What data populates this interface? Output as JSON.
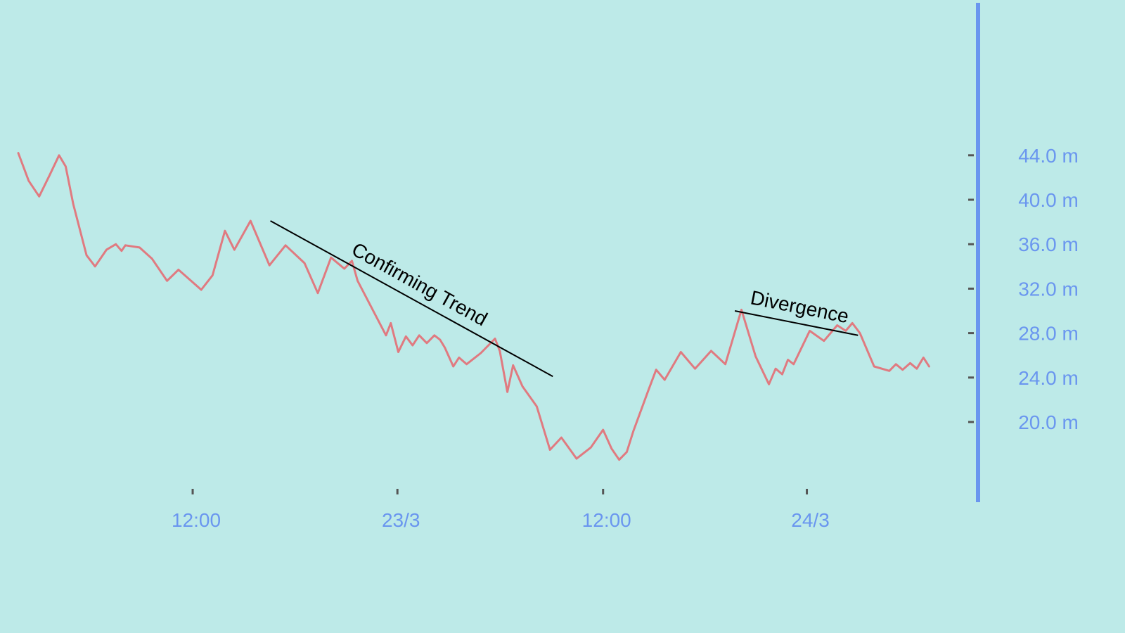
{
  "chart_data": {
    "type": "line",
    "title": "",
    "xlabel": "",
    "ylabel": "",
    "grid": false,
    "colors": {
      "background": "#bdeae8",
      "line": "#e07a80",
      "axis": "#6a96ef",
      "tick_mark": "#555555",
      "annotation": "#000000"
    },
    "x_range": [
      0,
      100
    ],
    "ylim": [
      16,
      60
    ],
    "y_ticks": [
      {
        "value": 44,
        "label": "44.0 m"
      },
      {
        "value": 40,
        "label": "40.0 m"
      },
      {
        "value": 36,
        "label": "36.0 m"
      },
      {
        "value": 32,
        "label": "32.0 m"
      },
      {
        "value": 28,
        "label": "28.0 m"
      },
      {
        "value": 24,
        "label": "24.0 m"
      },
      {
        "value": 20,
        "label": "20.0 m"
      }
    ],
    "x_ticks": [
      {
        "value": 18.4,
        "label": "12:00"
      },
      {
        "value": 40.0,
        "label": "23/3"
      },
      {
        "value": 61.7,
        "label": "12:00"
      },
      {
        "value": 83.2,
        "label": "24/3"
      }
    ],
    "series": [
      {
        "x": [
          0,
          1.1,
          2.2,
          3.3,
          4.3,
          5.0,
          5.8,
          7.2,
          8.1,
          9.3,
          10.3,
          10.9,
          11.3,
          12.8,
          14.1,
          15.7,
          16.9,
          19.3,
          20.5,
          21.8,
          22.8,
          24.5,
          26.5,
          28.2,
          30.2,
          31.6,
          33.0,
          34.4,
          35.2,
          35.8,
          38.8,
          39.3,
          40.1,
          40.9,
          41.6,
          42.3,
          43.1,
          43.9,
          44.5,
          45.0,
          45.9,
          46.5,
          47.3,
          48.8,
          50.3,
          50.8,
          51.6,
          52.2,
          53.2,
          54.7,
          56.1,
          57.3,
          58.9,
          60.4,
          61.7,
          62.6,
          63.4,
          64.2,
          64.9,
          66.5,
          67.3,
          68.2,
          69.9,
          71.4,
          73.1,
          74.6,
          76.3,
          77.8,
          79.2,
          79.9,
          80.6,
          81.2,
          81.8,
          83.5,
          85.0,
          86.4,
          87.3,
          88.0,
          88.8,
          90.3,
          91.9,
          92.6,
          93.3,
          94.1,
          94.8,
          95.5,
          96.1
        ],
        "y": [
          44.2,
          41.7,
          40.3,
          42.2,
          44.0,
          43.0,
          39.6,
          35.0,
          34.0,
          35.5,
          36.0,
          35.4,
          35.9,
          35.7,
          34.7,
          32.7,
          33.7,
          31.9,
          33.2,
          37.2,
          35.5,
          38.1,
          34.1,
          35.9,
          34.3,
          31.6,
          34.8,
          33.8,
          34.5,
          32.7,
          27.8,
          28.9,
          26.3,
          27.7,
          26.9,
          27.8,
          27.1,
          27.8,
          27.4,
          26.7,
          25.0,
          25.8,
          25.2,
          26.2,
          27.5,
          26.4,
          22.7,
          25.1,
          23.2,
          21.4,
          17.5,
          18.6,
          16.7,
          17.7,
          19.3,
          17.6,
          16.6,
          17.3,
          19.2,
          22.9,
          24.7,
          23.8,
          26.3,
          24.8,
          26.4,
          25.2,
          30.1,
          25.9,
          23.4,
          24.8,
          24.3,
          25.6,
          25.2,
          28.2,
          27.3,
          28.7,
          28.2,
          28.9,
          28.0,
          25.0,
          24.6,
          25.2,
          24.7,
          25.3,
          24.8,
          25.8,
          25.0
        ]
      }
    ],
    "annotations": [
      {
        "text": "Confirming Trend",
        "x1": 26.6,
        "y1": 38.1,
        "x2": 56.4,
        "y2": 24.1
      },
      {
        "text": "Divergence",
        "x1": 75.6,
        "y1": 30.0,
        "x2": 88.6,
        "y2": 27.8
      }
    ]
  }
}
